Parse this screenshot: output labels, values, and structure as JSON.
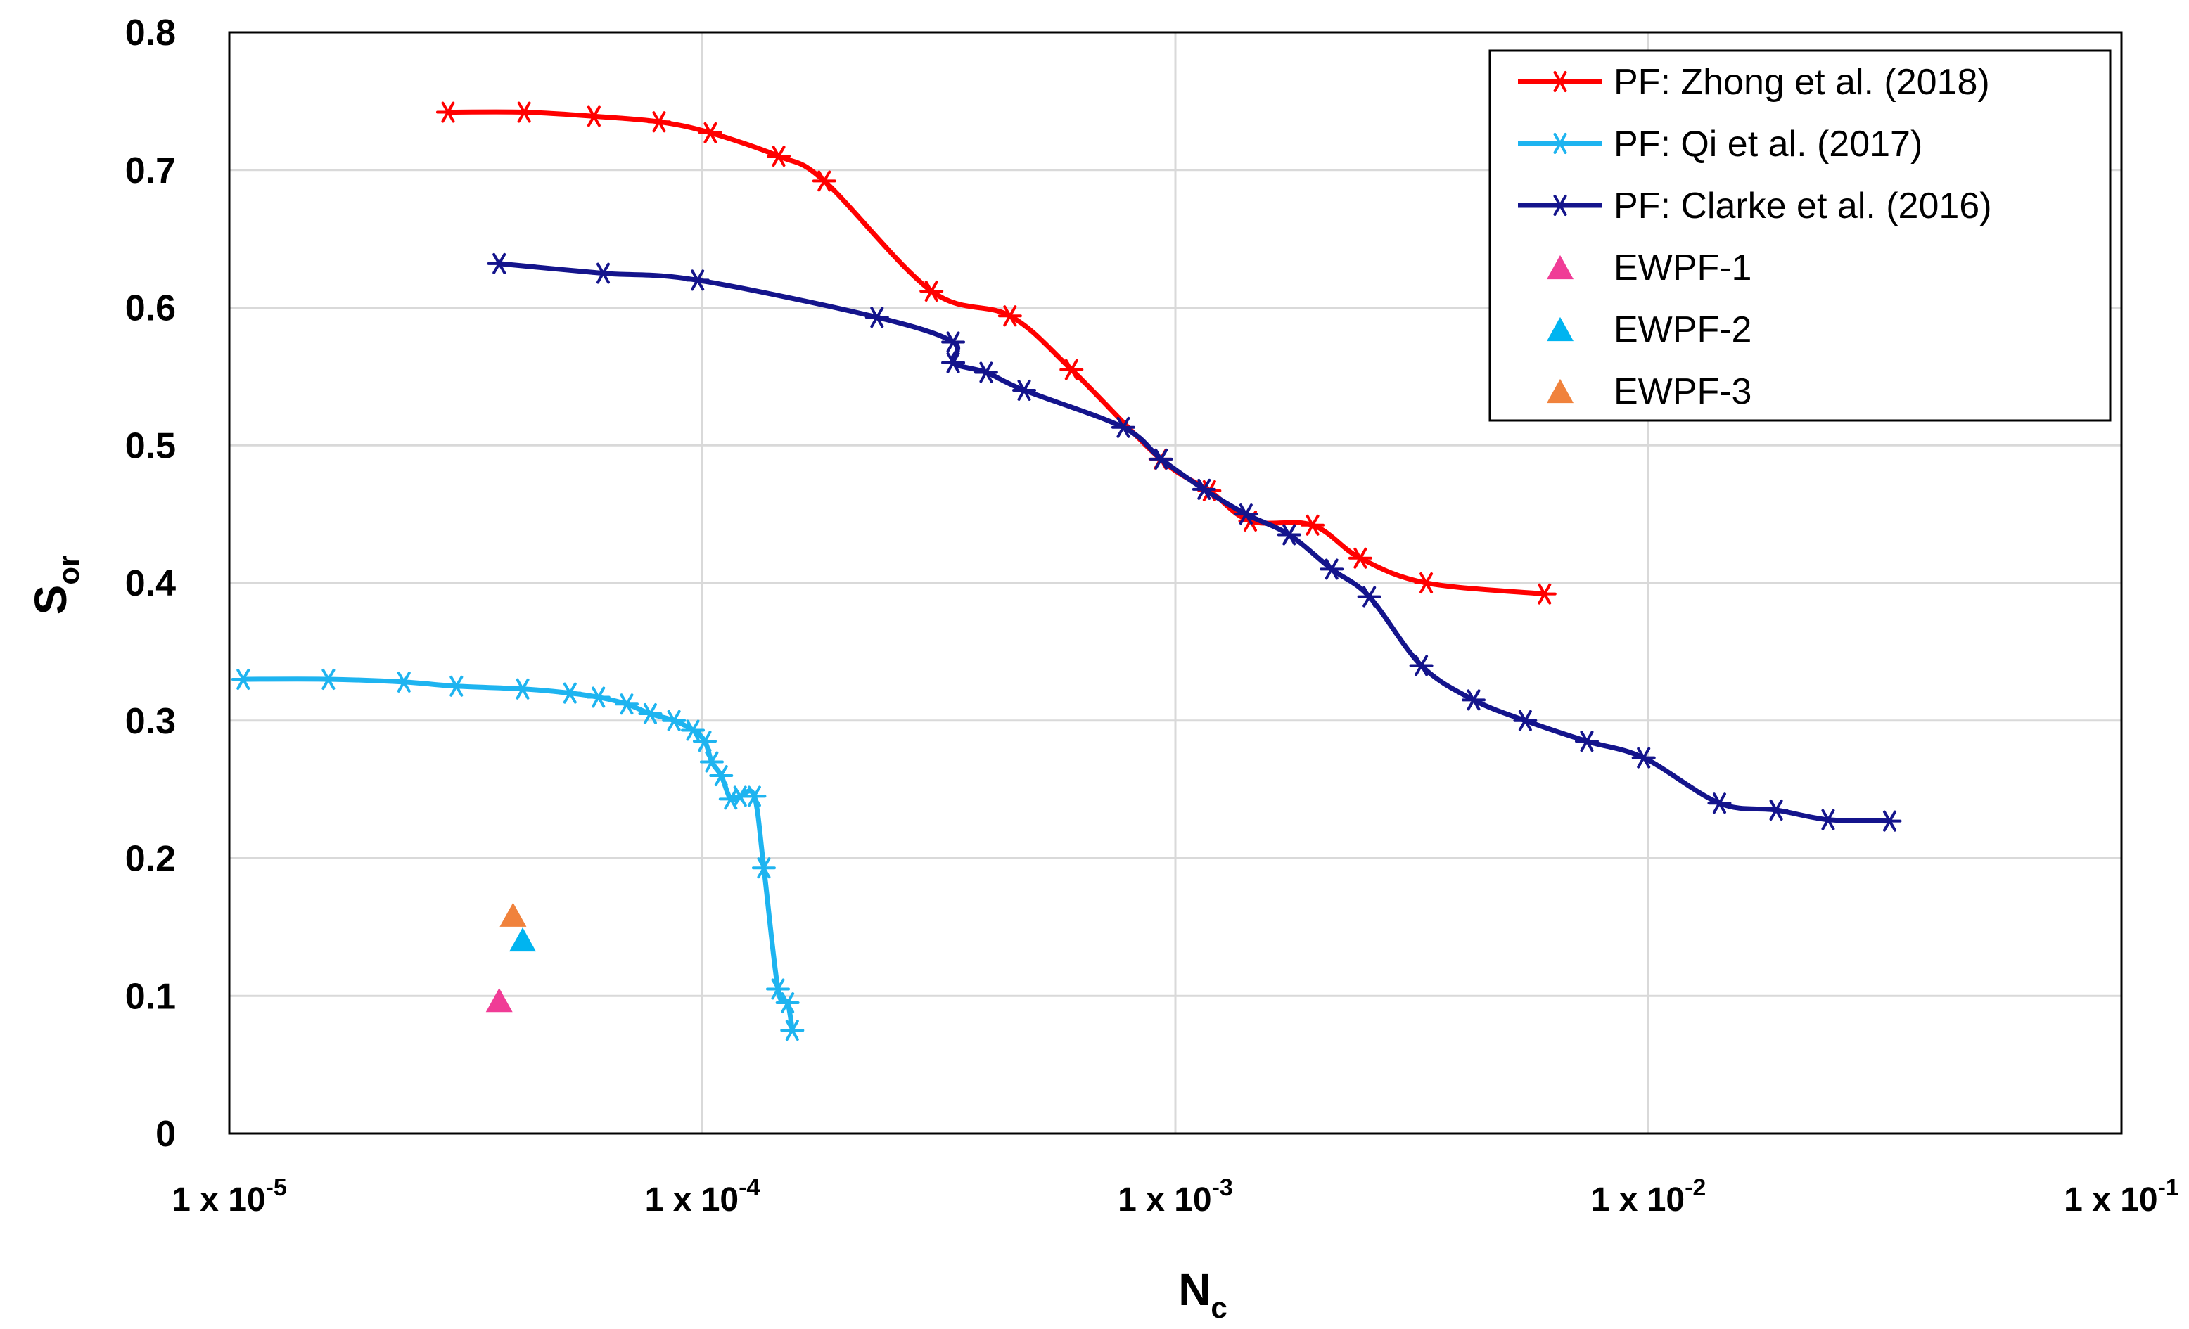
{
  "chart_data": {
    "type": "scatter",
    "title": "",
    "xlabel_main": "N",
    "xlabel_sub": "c",
    "ylabel_main": "S",
    "ylabel_sub": "or",
    "x_scale": "log",
    "xlim": [
      1e-05,
      0.1
    ],
    "ylim": [
      0,
      0.8
    ],
    "grid": true,
    "legend_position": "top-right",
    "y_ticks": [
      {
        "value": 0,
        "label": "0"
      },
      {
        "value": 0.1,
        "label": "0.1"
      },
      {
        "value": 0.2,
        "label": "0.2"
      },
      {
        "value": 0.3,
        "label": "0.3"
      },
      {
        "value": 0.4,
        "label": "0.4"
      },
      {
        "value": 0.5,
        "label": "0.5"
      },
      {
        "value": 0.6,
        "label": "0.6"
      },
      {
        "value": 0.7,
        "label": "0.7"
      },
      {
        "value": 0.8,
        "label": "0.8"
      }
    ],
    "x_ticks": [
      {
        "value": 1e-05,
        "base": "1 x 10",
        "exp": "-5"
      },
      {
        "value": 0.0001,
        "base": "1 x 10",
        "exp": "-4"
      },
      {
        "value": 0.001,
        "base": "1 x 10",
        "exp": "-3"
      },
      {
        "value": 0.01,
        "base": "1 x 10",
        "exp": "-2"
      },
      {
        "value": 0.1,
        "base": "1 x 10",
        "exp": "-1"
      }
    ],
    "series": [
      {
        "name": "PF: Zhong et al. (2018)",
        "color": "#ff0000",
        "marker": "asterisk",
        "line": true,
        "x": [
          2.9e-05,
          4.2e-05,
          5.9e-05,
          8.1e-05,
          0.000104,
          0.000145,
          0.000181,
          0.000305,
          0.000447,
          0.000603,
          0.00093,
          0.00118,
          0.00144,
          0.00195,
          0.00246,
          0.00339,
          0.00603
        ],
        "y": [
          0.742,
          0.742,
          0.739,
          0.735,
          0.727,
          0.71,
          0.692,
          0.612,
          0.594,
          0.555,
          0.49,
          0.467,
          0.445,
          0.442,
          0.418,
          0.4,
          0.392
        ]
      },
      {
        "name": "PF: Qi et al. (2017)",
        "color": "#1eb4f0",
        "marker": "asterisk",
        "line": true,
        "x": [
          1.07e-05,
          1.62e-05,
          2.34e-05,
          3.02e-05,
          4.17e-05,
          5.25e-05,
          6.03e-05,
          6.92e-05,
          7.76e-05,
          8.71e-05,
          9.55e-05,
          0.0001012,
          0.0001047,
          0.0001096,
          0.0001148,
          0.0001202,
          0.0001288,
          0.0001349,
          0.0001445,
          0.0001514,
          0.0001549
        ],
        "y": [
          0.33,
          0.33,
          0.328,
          0.325,
          0.323,
          0.32,
          0.317,
          0.312,
          0.305,
          0.3,
          0.293,
          0.285,
          0.27,
          0.26,
          0.243,
          0.245,
          0.245,
          0.193,
          0.105,
          0.095,
          0.075
        ]
      },
      {
        "name": "PF: Clarke et al. (2016)",
        "color": "#14148c",
        "marker": "asterisk",
        "line": true,
        "x": [
          3.72e-05,
          6.17e-05,
          9.77e-05,
          0.000234,
          0.000339,
          0.000339,
          0.000398,
          0.000479,
          0.000776,
          0.000933,
          0.00115,
          0.00141,
          0.00174,
          0.00214,
          0.00257,
          0.00331,
          0.00427,
          0.00549,
          0.00741,
          0.00977,
          0.01413,
          0.01862,
          0.02398,
          0.03236
        ],
        "y": [
          0.632,
          0.625,
          0.62,
          0.593,
          0.575,
          0.56,
          0.553,
          0.54,
          0.513,
          0.49,
          0.468,
          0.45,
          0.435,
          0.41,
          0.39,
          0.34,
          0.315,
          0.3,
          0.285,
          0.273,
          0.24,
          0.235,
          0.228,
          0.227
        ]
      },
      {
        "name": "EWPF-1",
        "color": "#f03c96",
        "marker": "triangle",
        "line": false,
        "x": [
          3.72e-05
        ],
        "y": [
          0.097
        ]
      },
      {
        "name": "EWPF-2",
        "color": "#00b4f0",
        "marker": "triangle",
        "line": false,
        "x": [
          4.17e-05
        ],
        "y": [
          0.141
        ]
      },
      {
        "name": "EWPF-3",
        "color": "#f0823c",
        "marker": "triangle",
        "line": false,
        "x": [
          3.98e-05
        ],
        "y": [
          0.159
        ]
      }
    ]
  }
}
